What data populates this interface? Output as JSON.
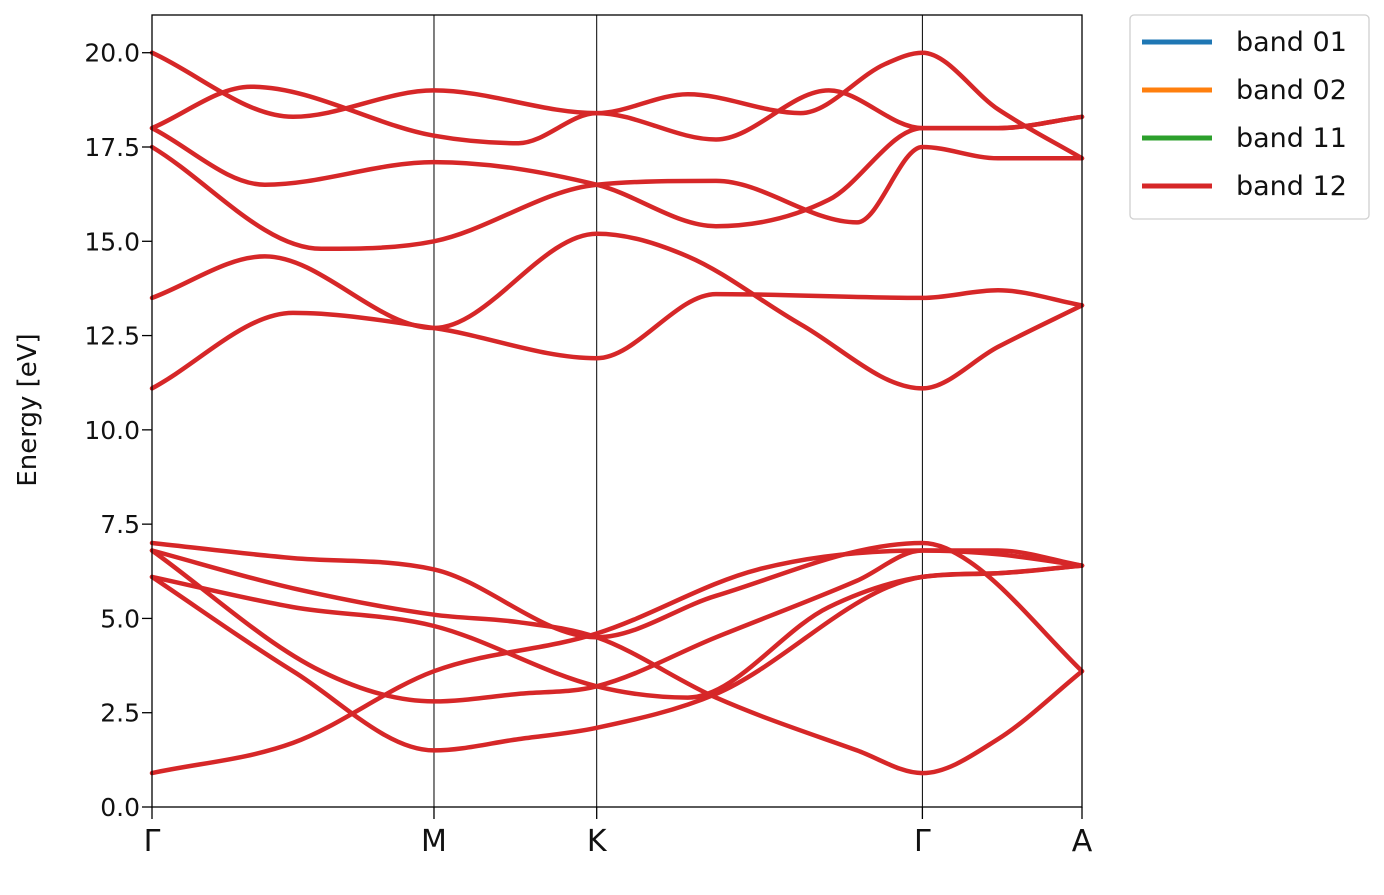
{
  "chart_data": {
    "type": "line",
    "title": "",
    "xlabel": "",
    "ylabel": "Energy [eV]",
    "ylim": [
      0.0,
      21.0
    ],
    "yticks": [
      "0.0",
      "2.5",
      "5.0",
      "7.5",
      "10.0",
      "12.5",
      "15.0",
      "17.5",
      "20.0"
    ],
    "kpath": [
      {
        "label": "Γ",
        "pos": 0.0
      },
      {
        "label": "M",
        "pos": 1.0
      },
      {
        "label": "K",
        "pos": 1.577
      },
      {
        "label": "Γ",
        "pos": 2.732
      },
      {
        "label": "A",
        "pos": 3.298
      }
    ],
    "legend": {
      "placement": "outside-top-right",
      "entries": [
        {
          "name": "band 01",
          "color": "#1f77b4"
        },
        {
          "name": "band 02",
          "color": "#ff7f0e"
        },
        {
          "name": "band 11",
          "color": "#2ca02c"
        },
        {
          "name": "band 12",
          "color": "#d62728"
        }
      ]
    },
    "grid": false,
    "line_color": "#d62728",
    "series": [
      {
        "x": [
          0.0,
          0.5,
          1.0,
          1.577,
          2.15,
          2.732,
          3.0,
          3.298
        ],
        "y": [
          0.9,
          1.7,
          3.6,
          4.6,
          6.3,
          6.8,
          6.7,
          6.4
        ]
      },
      {
        "x": [
          0.0,
          0.5,
          1.0,
          1.3,
          1.577,
          2.0,
          2.732,
          3.0,
          3.298
        ],
        "y": [
          6.1,
          3.6,
          1.5,
          1.8,
          2.1,
          3.0,
          6.1,
          6.2,
          6.4
        ]
      },
      {
        "x": [
          0.0,
          0.5,
          1.0,
          1.577,
          1.9,
          2.4,
          2.732,
          3.0,
          3.298
        ],
        "y": [
          6.1,
          5.3,
          4.8,
          3.2,
          2.9,
          5.3,
          6.1,
          6.2,
          6.4
        ]
      },
      {
        "x": [
          0.0,
          0.6,
          1.0,
          1.3,
          1.577,
          2.0,
          2.5,
          2.732,
          3.0,
          3.298
        ],
        "y": [
          6.8,
          3.6,
          2.8,
          3.0,
          3.2,
          4.5,
          6.0,
          6.8,
          6.8,
          6.4
        ]
      },
      {
        "x": [
          0.0,
          0.5,
          1.0,
          1.3,
          1.577,
          2.0,
          2.5,
          2.732,
          3.0,
          3.298
        ],
        "y": [
          6.8,
          5.8,
          5.1,
          4.9,
          4.5,
          2.9,
          1.5,
          0.9,
          1.8,
          3.6
        ]
      },
      {
        "x": [
          0.0,
          0.5,
          1.0,
          1.577,
          2.0,
          2.732,
          2.9,
          3.298
        ],
        "y": [
          7.0,
          6.6,
          6.3,
          4.5,
          5.6,
          7.0,
          6.5,
          3.6
        ]
      },
      {
        "x": [
          0.0,
          0.5,
          1.0,
          1.577,
          2.0,
          2.732,
          3.0,
          3.298
        ],
        "y": [
          11.1,
          13.1,
          12.7,
          11.9,
          13.6,
          13.5,
          13.7,
          13.3
        ]
      },
      {
        "x": [
          0.0,
          0.4,
          1.0,
          1.577,
          1.9,
          2.3,
          2.732,
          3.0,
          3.298
        ],
        "y": [
          13.5,
          14.6,
          12.7,
          15.2,
          14.6,
          12.8,
          11.1,
          12.2,
          13.3
        ]
      },
      {
        "x": [
          0.0,
          0.6,
          1.0,
          1.577,
          2.0,
          2.5,
          2.732,
          3.0,
          3.298
        ],
        "y": [
          17.5,
          14.8,
          15.0,
          16.5,
          16.6,
          15.5,
          17.5,
          17.2,
          17.2
        ]
      },
      {
        "x": [
          0.0,
          0.4,
          1.0,
          1.577,
          2.0,
          2.4,
          2.732,
          3.0,
          3.298
        ],
        "y": [
          18.0,
          16.5,
          17.1,
          16.5,
          15.4,
          16.1,
          18.0,
          18.0,
          18.3
        ]
      },
      {
        "x": [
          0.0,
          0.35,
          1.0,
          1.3,
          1.577,
          2.0,
          2.4,
          2.732,
          3.0,
          3.298
        ],
        "y": [
          18.0,
          19.1,
          17.8,
          17.6,
          18.4,
          17.7,
          19.0,
          18.0,
          18.0,
          18.3
        ]
      },
      {
        "x": [
          0.0,
          0.5,
          1.0,
          1.577,
          1.9,
          2.3,
          2.6,
          2.732,
          3.0,
          3.298
        ],
        "y": [
          20.0,
          18.3,
          19.0,
          18.4,
          18.9,
          18.4,
          19.7,
          20.0,
          18.5,
          17.2
        ]
      }
    ]
  }
}
